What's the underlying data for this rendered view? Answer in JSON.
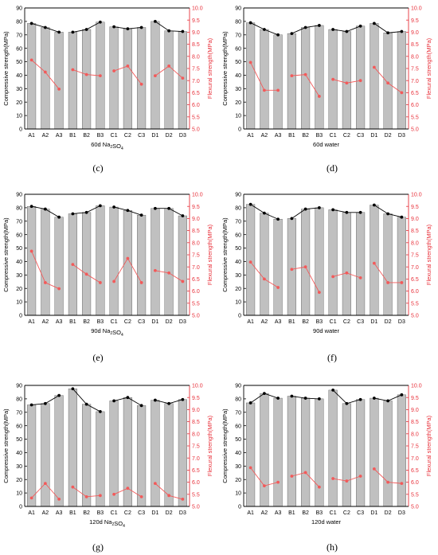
{
  "chart_data": [
    {
      "type": "bar",
      "panel_label": "(c)",
      "xlabel_main": "60d Na",
      "xlabel_sub": "2",
      "xlabel_mid": "SO",
      "xlabel_sub2": "4",
      "ylabel_left": "Compressive strength(MPa)",
      "ylabel_right": "Flexural strength(MPa)",
      "categories": [
        "A1",
        "A2",
        "A3",
        "B1",
        "B2",
        "B3",
        "C1",
        "C2",
        "C3",
        "D1",
        "D2",
        "D3"
      ],
      "groups": [
        [
          0,
          1,
          2
        ],
        [
          3,
          4,
          5
        ],
        [
          6,
          7,
          8
        ],
        [
          9,
          10,
          11
        ]
      ],
      "ylim_left": [
        0,
        90
      ],
      "ylim_right": [
        5.0,
        10.0
      ],
      "left_ticks": [
        "0",
        "10",
        "20",
        "30",
        "40",
        "50",
        "60",
        "70",
        "80",
        "90"
      ],
      "right_ticks": [
        "5.0",
        "5.5",
        "6.0",
        "6.5",
        "7.0",
        "7.5",
        "8.0",
        "8.5",
        "9.0",
        "9.5",
        "10.0"
      ],
      "series": [
        {
          "axis": "left",
          "values": [
            78.5,
            75.5,
            72,
            72,
            74,
            79.5,
            76,
            74.5,
            75.5,
            80,
            73,
            72.5
          ]
        },
        {
          "axis": "right",
          "values": [
            7.85,
            7.35,
            6.65,
            7.45,
            7.25,
            7.2,
            7.4,
            7.6,
            6.85,
            7.2,
            7.6,
            7.1
          ]
        }
      ]
    },
    {
      "type": "bar",
      "panel_label": "(d)",
      "xlabel_main": "60d water",
      "xlabel_sub": "",
      "xlabel_mid": "",
      "xlabel_sub2": "",
      "ylabel_left": "Compressive strength(MPa)",
      "ylabel_right": "Flexural strength(MPa)",
      "categories": [
        "A1",
        "A2",
        "A3",
        "B1",
        "B2",
        "B3",
        "C1",
        "C2",
        "C3",
        "D1",
        "D2",
        "D3"
      ],
      "groups": [
        [
          0,
          1,
          2
        ],
        [
          3,
          4,
          5
        ],
        [
          6,
          7,
          8
        ],
        [
          9,
          10,
          11
        ]
      ],
      "ylim_left": [
        0,
        90
      ],
      "ylim_right": [
        5.0,
        10.0
      ],
      "left_ticks": [
        "0",
        "10",
        "20",
        "30",
        "40",
        "50",
        "60",
        "70",
        "80",
        "90"
      ],
      "right_ticks": [
        "5.0",
        "5.5",
        "6.0",
        "6.5",
        "7.0",
        "7.5",
        "8.0",
        "8.5",
        "9.0",
        "9.5",
        "10.0"
      ],
      "series": [
        {
          "axis": "left",
          "values": [
            79,
            74,
            70,
            71,
            75.5,
            77,
            74,
            72.5,
            76.5,
            78.5,
            71.5,
            72.5
          ]
        },
        {
          "axis": "right",
          "values": [
            7.75,
            6.6,
            6.6,
            7.2,
            7.25,
            6.35,
            7.05,
            6.9,
            7.0,
            7.55,
            6.9,
            6.5
          ]
        }
      ]
    },
    {
      "type": "bar",
      "panel_label": "(e)",
      "xlabel_main": "90d Na",
      "xlabel_sub": "2",
      "xlabel_mid": "SO",
      "xlabel_sub2": "4",
      "ylabel_left": "Compressive strength(MPa)",
      "ylabel_right": "Flexural strength(MPa)",
      "categories": [
        "A1",
        "A2",
        "A3",
        "B1",
        "B2",
        "B3",
        "C1",
        "C2",
        "C3",
        "D1",
        "D2",
        "D3"
      ],
      "groups": [
        [
          0,
          1,
          2
        ],
        [
          3,
          4,
          5
        ],
        [
          6,
          7,
          8
        ],
        [
          9,
          10,
          11
        ]
      ],
      "ylim_left": [
        0,
        90
      ],
      "ylim_right": [
        5.0,
        10.0
      ],
      "left_ticks": [
        "0",
        "10",
        "20",
        "30",
        "40",
        "50",
        "60",
        "70",
        "80",
        "90"
      ],
      "right_ticks": [
        "5.0",
        "5.5",
        "6.0",
        "6.5",
        "7.0",
        "7.5",
        "8.0",
        "8.5",
        "9.0",
        "9.5",
        "10.0"
      ],
      "series": [
        {
          "axis": "left",
          "values": [
            81,
            79,
            73,
            75.5,
            76.5,
            81.5,
            80.5,
            78,
            74.5,
            79.5,
            79.5,
            74
          ]
        },
        {
          "axis": "right",
          "values": [
            7.65,
            6.35,
            6.1,
            7.1,
            6.7,
            6.35,
            6.4,
            7.35,
            6.35,
            6.85,
            6.75,
            6.4
          ]
        }
      ]
    },
    {
      "type": "bar",
      "panel_label": "(f)",
      "xlabel_main": "90d water",
      "xlabel_sub": "",
      "xlabel_mid": "",
      "xlabel_sub2": "",
      "ylabel_left": "Compressive strength(MPa)",
      "ylabel_right": "Flexural strength(MPa)",
      "categories": [
        "A1",
        "A2",
        "A3",
        "B1",
        "B2",
        "B3",
        "C1",
        "C2",
        "C3",
        "D1",
        "D2",
        "D3"
      ],
      "groups": [
        [
          0,
          1,
          2
        ],
        [
          3,
          4,
          5
        ],
        [
          6,
          7,
          8
        ],
        [
          9,
          10,
          11
        ]
      ],
      "ylim_left": [
        0,
        90
      ],
      "ylim_right": [
        5.0,
        10.0
      ],
      "left_ticks": [
        "0",
        "10",
        "20",
        "30",
        "40",
        "50",
        "60",
        "70",
        "80",
        "90"
      ],
      "right_ticks": [
        "5.0",
        "5.5",
        "6.0",
        "6.5",
        "7.0",
        "7.5",
        "8.0",
        "8.5",
        "9.0",
        "9.5",
        "10.0"
      ],
      "series": [
        {
          "axis": "left",
          "values": [
            82.5,
            76,
            71.5,
            72,
            79,
            80,
            78.5,
            76.5,
            76.5,
            82,
            75.5,
            73
          ]
        },
        {
          "axis": "right",
          "values": [
            7.2,
            6.5,
            6.15,
            6.9,
            7.0,
            5.95,
            6.6,
            6.75,
            6.55,
            7.15,
            6.35,
            6.35
          ]
        }
      ]
    },
    {
      "type": "bar",
      "panel_label": "(g)",
      "xlabel_main": "120d Na",
      "xlabel_sub": "2",
      "xlabel_mid": "SO",
      "xlabel_sub2": "4",
      "ylabel_left": "Compressive strength(MPa)",
      "ylabel_right": "Flexural strength(MPa)",
      "categories": [
        "A1",
        "A2",
        "A3",
        "B1",
        "B2",
        "B3",
        "C1",
        "C2",
        "C3",
        "D1",
        "D2",
        "D3"
      ],
      "groups": [
        [
          0,
          1,
          2
        ],
        [
          3,
          4,
          5
        ],
        [
          6,
          7,
          8
        ],
        [
          9,
          10,
          11
        ]
      ],
      "ylim_left": [
        0,
        90
      ],
      "ylim_right": [
        5.0,
        10.0
      ],
      "left_ticks": [
        "0",
        "10",
        "20",
        "30",
        "40",
        "50",
        "60",
        "70",
        "80",
        "90"
      ],
      "right_ticks": [
        "5.0",
        "5.5",
        "6.0",
        "6.5",
        "7.0",
        "7.5",
        "8.0",
        "8.5",
        "9.0",
        "9.5",
        "10.0"
      ],
      "series": [
        {
          "axis": "left",
          "values": [
            75.5,
            76.5,
            82.5,
            87.5,
            76,
            70.5,
            78.5,
            81,
            75,
            79,
            76.5,
            79.5
          ]
        },
        {
          "axis": "right",
          "values": [
            5.35,
            5.95,
            5.3,
            5.8,
            5.4,
            5.45,
            5.5,
            5.75,
            5.4,
            5.95,
            5.45,
            5.3
          ]
        }
      ]
    },
    {
      "type": "bar",
      "panel_label": "(h)",
      "xlabel_main": "120d water",
      "xlabel_sub": "",
      "xlabel_mid": "",
      "xlabel_sub2": "",
      "ylabel_left": "Compressive strength(MPa)",
      "ylabel_right": "Flexural strength(MPa)",
      "categories": [
        "A1",
        "A2",
        "A3",
        "B1",
        "B2",
        "B3",
        "C1",
        "C2",
        "C3",
        "D1",
        "D2",
        "D3"
      ],
      "groups": [
        [
          0,
          1,
          2
        ],
        [
          3,
          4,
          5
        ],
        [
          6,
          7,
          8
        ],
        [
          9,
          10,
          11
        ]
      ],
      "ylim_left": [
        0,
        90
      ],
      "ylim_right": [
        5.0,
        10.0
      ],
      "left_ticks": [
        "0",
        "10",
        "20",
        "30",
        "40",
        "50",
        "60",
        "70",
        "80",
        "90"
      ],
      "right_ticks": [
        "5.0",
        "5.5",
        "6.0",
        "6.5",
        "7.0",
        "7.5",
        "8.0",
        "8.5",
        "9.0",
        "9.5",
        "10.0"
      ],
      "series": [
        {
          "axis": "left",
          "values": [
            77,
            84,
            80.5,
            82,
            80.5,
            80,
            86.5,
            76.5,
            79.5,
            80.5,
            78.5,
            83
          ]
        },
        {
          "axis": "right",
          "values": [
            6.6,
            5.85,
            6.0,
            6.25,
            6.4,
            5.8,
            6.15,
            6.05,
            6.25,
            6.55,
            6.0,
            5.95
          ]
        }
      ]
    }
  ],
  "colors": {
    "bar_fill": "#c0c0c0",
    "bar_stroke": "#555555",
    "compressive_line": "#000000",
    "flexural_line": "#f25a5a",
    "right_axis": "#e8303a"
  }
}
